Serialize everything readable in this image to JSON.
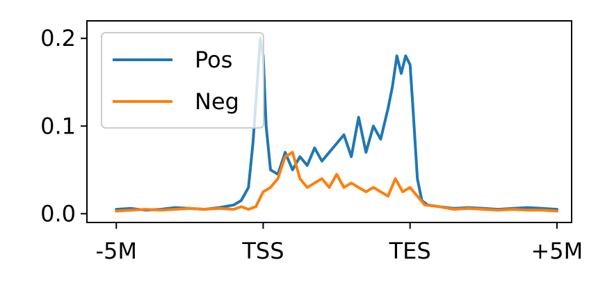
{
  "chart_data": {
    "type": "line",
    "title": "",
    "xlabel": "",
    "ylabel": "",
    "xlim": [
      -0.2,
      3.1
    ],
    "ylim": [
      -0.01,
      0.22
    ],
    "grid": false,
    "legend": {
      "placement": "top-left"
    },
    "x_ticks": [
      {
        "value": 0,
        "label": "-5M"
      },
      {
        "value": 1,
        "label": "TSS"
      },
      {
        "value": 2,
        "label": "TES"
      },
      {
        "value": 3,
        "label": "+5M"
      }
    ],
    "y_ticks": [
      {
        "value": 0.0,
        "label": "0.0"
      },
      {
        "value": 0.1,
        "label": "0.1"
      },
      {
        "value": 0.2,
        "label": "0.2"
      }
    ],
    "series": [
      {
        "name": "Pos",
        "color": "#1f77b4",
        "x": [
          0,
          0.1,
          0.2,
          0.3,
          0.4,
          0.5,
          0.6,
          0.7,
          0.8,
          0.85,
          0.9,
          0.93,
          0.96,
          0.98,
          1.0,
          1.02,
          1.05,
          1.1,
          1.15,
          1.2,
          1.25,
          1.3,
          1.35,
          1.4,
          1.45,
          1.5,
          1.55,
          1.6,
          1.65,
          1.7,
          1.75,
          1.8,
          1.85,
          1.88,
          1.91,
          1.94,
          1.97,
          2.0,
          2.02,
          2.05,
          2.08,
          2.12,
          2.2,
          2.3,
          2.4,
          2.5,
          2.6,
          2.7,
          2.8,
          2.9,
          3.0
        ],
        "y": [
          0.005,
          0.006,
          0.004,
          0.005,
          0.007,
          0.006,
          0.005,
          0.007,
          0.01,
          0.015,
          0.03,
          0.08,
          0.15,
          0.2,
          0.18,
          0.1,
          0.05,
          0.045,
          0.07,
          0.05,
          0.065,
          0.055,
          0.075,
          0.06,
          0.07,
          0.08,
          0.09,
          0.065,
          0.11,
          0.07,
          0.1,
          0.085,
          0.12,
          0.145,
          0.18,
          0.16,
          0.18,
          0.17,
          0.12,
          0.04,
          0.015,
          0.01,
          0.008,
          0.006,
          0.007,
          0.006,
          0.005,
          0.006,
          0.007,
          0.006,
          0.005
        ]
      },
      {
        "name": "Neg",
        "color": "#ff7f0e",
        "x": [
          0,
          0.1,
          0.2,
          0.3,
          0.4,
          0.5,
          0.6,
          0.7,
          0.8,
          0.85,
          0.9,
          0.95,
          1.0,
          1.05,
          1.1,
          1.15,
          1.2,
          1.25,
          1.3,
          1.35,
          1.4,
          1.45,
          1.5,
          1.55,
          1.6,
          1.65,
          1.7,
          1.75,
          1.8,
          1.85,
          1.9,
          1.95,
          2.0,
          2.05,
          2.1,
          2.2,
          2.3,
          2.4,
          2.5,
          2.6,
          2.7,
          2.8,
          2.9,
          3.0
        ],
        "y": [
          0.003,
          0.004,
          0.005,
          0.004,
          0.005,
          0.006,
          0.005,
          0.006,
          0.005,
          0.008,
          0.005,
          0.008,
          0.025,
          0.03,
          0.04,
          0.065,
          0.07,
          0.04,
          0.03,
          0.035,
          0.04,
          0.03,
          0.045,
          0.03,
          0.035,
          0.03,
          0.025,
          0.03,
          0.025,
          0.02,
          0.04,
          0.025,
          0.03,
          0.02,
          0.01,
          0.008,
          0.005,
          0.006,
          0.005,
          0.004,
          0.005,
          0.004,
          0.004,
          0.003
        ]
      }
    ]
  }
}
